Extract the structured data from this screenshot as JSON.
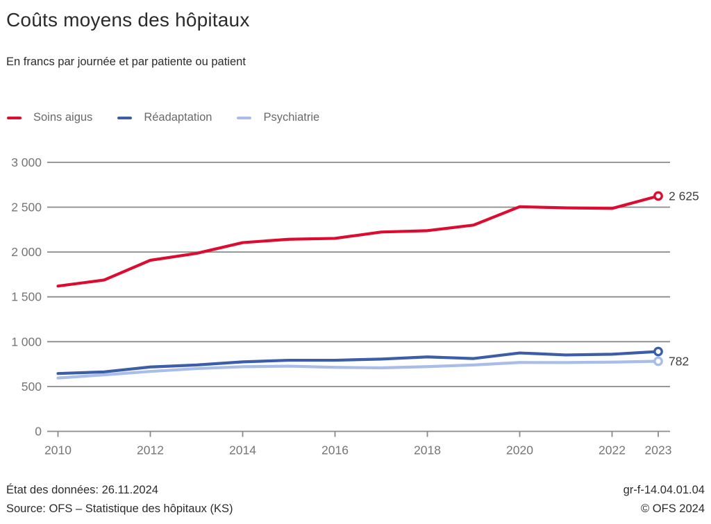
{
  "header": {
    "title": "Coûts moyens des hôpitaux",
    "subtitle": "En francs par journée et par patiente ou patient"
  },
  "legend": {
    "items": [
      {
        "label": "Soins aigus",
        "color": "#dd0b2f"
      },
      {
        "label": "Réadaptation",
        "color": "#3c5da8"
      },
      {
        "label": "Psychiatrie",
        "color": "#a9bdea"
      }
    ]
  },
  "chart_data": {
    "type": "line",
    "title": "Coûts moyens des hôpitaux",
    "subtitle": "En francs par journée et par patiente ou patient",
    "x": [
      2010,
      2011,
      2012,
      2013,
      2014,
      2015,
      2016,
      2017,
      2018,
      2019,
      2020,
      2021,
      2022,
      2023
    ],
    "series": [
      {
        "name": "Soins aigus",
        "color": "#dd0b2f",
        "values": [
          1620,
          1688,
          1908,
          1985,
          2105,
          2142,
          2152,
          2223,
          2238,
          2300,
          2505,
          2492,
          2486,
          2625
        ],
        "end_label": "2 625",
        "end_marker": true
      },
      {
        "name": "Réadaptation",
        "color": "#3c5da8",
        "values": [
          645,
          663,
          718,
          740,
          775,
          793,
          793,
          806,
          830,
          812,
          874,
          852,
          860,
          890
        ],
        "end_label": "",
        "end_marker": true
      },
      {
        "name": "Psychiatrie",
        "color": "#a9bdea",
        "values": [
          595,
          630,
          668,
          700,
          721,
          727,
          714,
          708,
          722,
          740,
          768,
          767,
          772,
          782
        ],
        "end_label": "782",
        "end_marker": true
      }
    ],
    "ylim": [
      0,
      3000
    ],
    "yticks": [
      0,
      500,
      1000,
      1500,
      2000,
      2500,
      3000
    ],
    "ytick_labels": [
      "0",
      "500",
      "1 000",
      "1 500",
      "2 000",
      "2 500",
      "3 000"
    ],
    "xticks": [
      2010,
      2012,
      2014,
      2016,
      2018,
      2020,
      2022,
      2023
    ],
    "xtick_labels": [
      "2010",
      "2012",
      "2014",
      "2016",
      "2018",
      "2020",
      "2022",
      "2023"
    ],
    "grid": true,
    "legend_position": "top",
    "grid_color": "#8a8a8a",
    "axis_label_color": "#757575",
    "end_label_color": "#3f3f3f"
  },
  "footer": {
    "status": "État des données: 26.11.2024",
    "source": "Source: OFS – Statistique des hôpitaux (KS)",
    "reference": "gr-f-14.04.01.04",
    "copyright": "© OFS 2024"
  }
}
